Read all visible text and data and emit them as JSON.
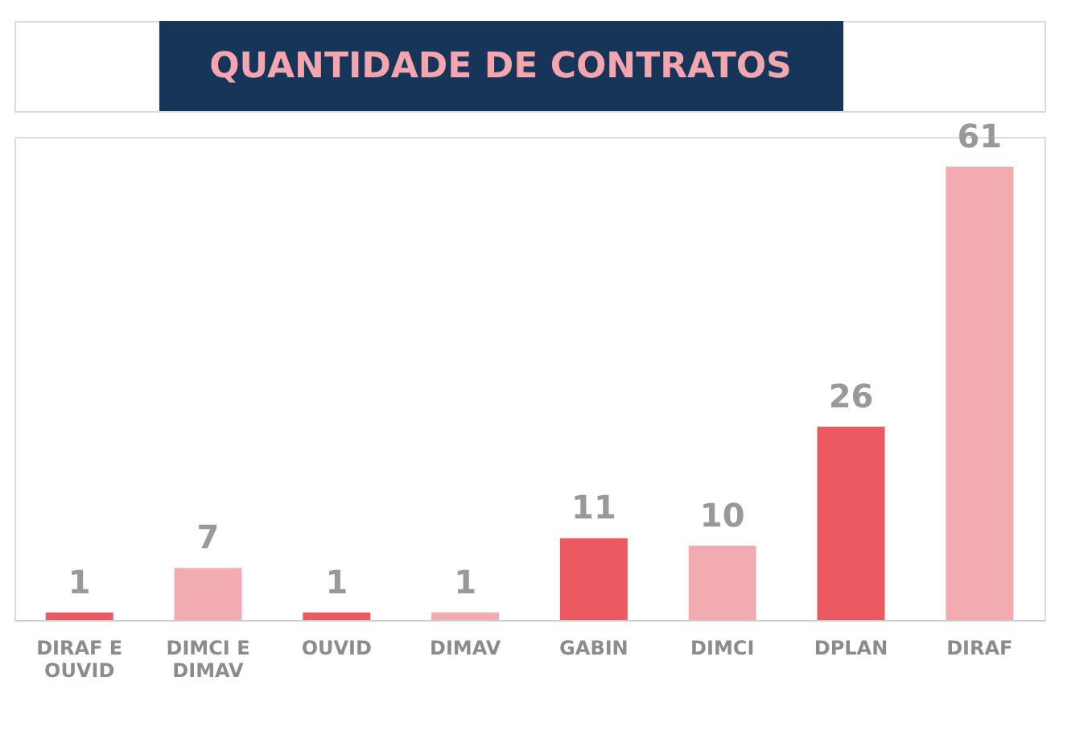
{
  "chart_data": {
    "type": "bar",
    "title": "QUANTIDADE DE CONTRATOS",
    "categories": [
      "DIRAF E OUVID",
      "DIMCI E DIMAV",
      "OUVID",
      "DIMAV",
      "GABIN",
      "DIMCI",
      "DPLAN",
      "DIRAF"
    ],
    "values": [
      1,
      7,
      1,
      1,
      11,
      10,
      26,
      61
    ],
    "colors": [
      "#eb5a60",
      "#f2abb1",
      "#eb5a60",
      "#f2abb1",
      "#eb5a60",
      "#f2abb1",
      "#eb5a60",
      "#f2abb1"
    ],
    "data_labels": true,
    "grid": false
  }
}
